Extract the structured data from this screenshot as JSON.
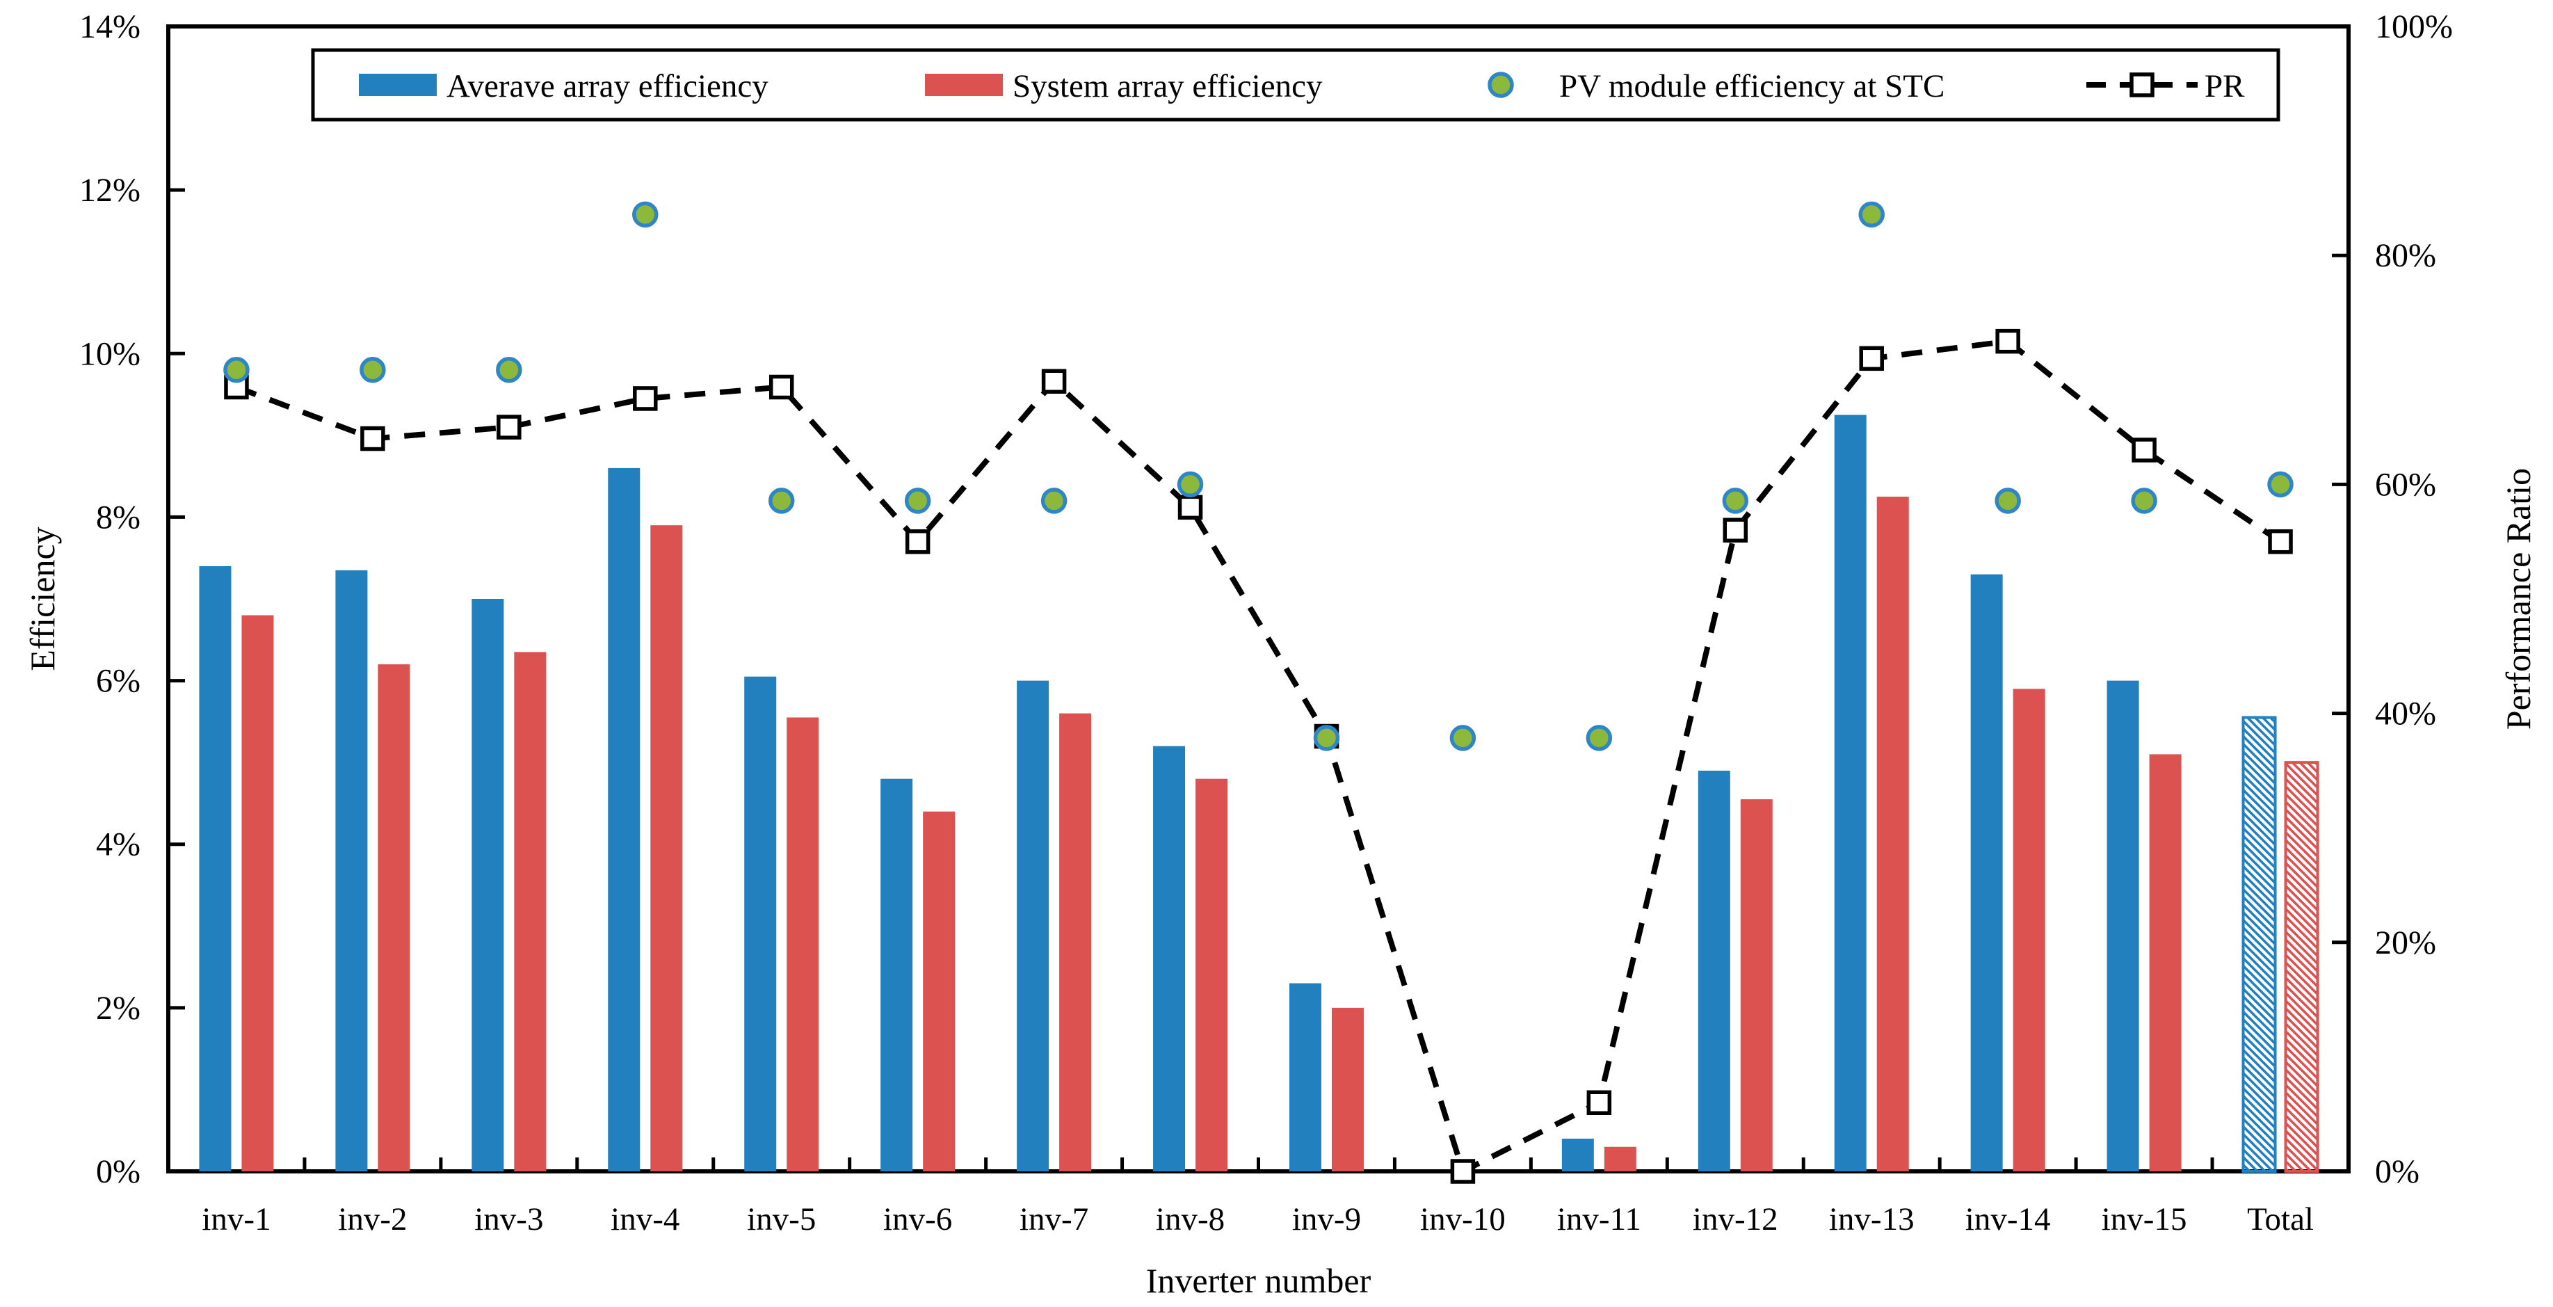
{
  "chart_data": {
    "type": "combo",
    "title": "",
    "categories": [
      "inv-1",
      "inv-2",
      "inv-3",
      "inv-4",
      "inv-5",
      "inv-6",
      "inv-7",
      "inv-8",
      "inv-9",
      "inv-10",
      "inv-11",
      "inv-12",
      "inv-13",
      "inv-14",
      "inv-15",
      "Total"
    ],
    "series": [
      {
        "name": "Averave array efficiency",
        "type": "bar",
        "axis": "left",
        "color": "#2380BE",
        "values": [
          7.4,
          7.35,
          7.0,
          8.6,
          6.05,
          4.8,
          6.0,
          5.2,
          2.3,
          0,
          0.4,
          4.9,
          9.25,
          7.3,
          6.0,
          5.55
        ]
      },
      {
        "name": "System array efficiency",
        "type": "bar",
        "axis": "left",
        "color": "#DB5250",
        "values": [
          6.8,
          6.2,
          6.35,
          7.9,
          5.55,
          4.4,
          5.6,
          4.8,
          2.0,
          0,
          0.3,
          4.55,
          8.25,
          5.9,
          5.1,
          5.0
        ]
      },
      {
        "name": "PV module efficiency at STC",
        "type": "scatter",
        "axis": "left",
        "fill": "#8CB83C",
        "stroke": "#2F86C6",
        "values": [
          9.8,
          9.8,
          9.8,
          11.7,
          8.2,
          8.2,
          8.2,
          8.4,
          5.3,
          5.3,
          5.3,
          8.2,
          11.7,
          8.2,
          8.2,
          8.4
        ]
      },
      {
        "name": "PR",
        "type": "line",
        "axis": "right",
        "color": "#000000",
        "style": "dashed",
        "marker": "open-square",
        "values": [
          68.5,
          64,
          65,
          67.5,
          68.5,
          55,
          69,
          58,
          38,
          0,
          6,
          56,
          71,
          72.5,
          63,
          55
        ]
      }
    ],
    "left_axis": {
      "label": "Efficiency",
      "min": 0,
      "max": 14,
      "tick_step": 2,
      "ticks": [
        "0%",
        "2%",
        "4%",
        "6%",
        "8%",
        "10%",
        "12%",
        "14%"
      ]
    },
    "right_axis": {
      "label": "Performance Ratio",
      "min": 0,
      "max": 100,
      "tick_step": 20,
      "ticks": [
        "0%",
        "20%",
        "40%",
        "60%",
        "80%",
        "100%"
      ]
    },
    "x_axis": {
      "label": "Inverter number"
    },
    "legend_position": "top",
    "grid": false,
    "hatched_category": "Total",
    "colors": {
      "bar_blue": "#2380BE",
      "bar_red": "#DB5250",
      "dot_fill": "#8CB83C",
      "dot_stroke": "#2F86C6",
      "line": "#000000",
      "axis": "#000000",
      "background": "#FFFFFF"
    }
  }
}
